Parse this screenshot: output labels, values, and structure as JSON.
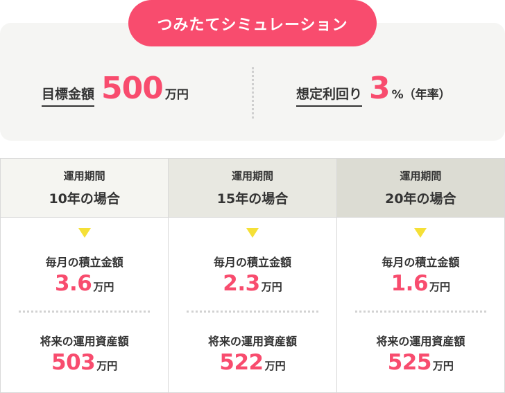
{
  "title": "つみたてシミュレーション",
  "target": {
    "label": "目標金額",
    "value": "500",
    "unit": "万円"
  },
  "rate": {
    "label": "想定利回り",
    "value": "3",
    "unit": "%（年率）"
  },
  "columns": [
    {
      "header_small": "運用期間",
      "header_big": "10年の場合",
      "monthly_label": "毎月の積立金額",
      "monthly_value": "3.6",
      "monthly_unit": "万円",
      "future_label": "将来の運用資産額",
      "future_value": "503",
      "future_unit": "万円"
    },
    {
      "header_small": "運用期間",
      "header_big": "15年の場合",
      "monthly_label": "毎月の積立金額",
      "monthly_value": "2.3",
      "monthly_unit": "万円",
      "future_label": "将来の運用資産額",
      "future_value": "522",
      "future_unit": "万円"
    },
    {
      "header_small": "運用期間",
      "header_big": "20年の場合",
      "monthly_label": "毎月の積立金額",
      "monthly_value": "1.6",
      "monthly_unit": "万円",
      "future_label": "将来の運用資産額",
      "future_value": "525",
      "future_unit": "万円"
    }
  ],
  "colors": {
    "accent": "#f84c6e",
    "arrow": "#f5e037",
    "panel": "#f5f5f3",
    "header_10": "#f5f5f1",
    "header_15": "#e8e8e1",
    "header_20": "#dcdcd3"
  }
}
